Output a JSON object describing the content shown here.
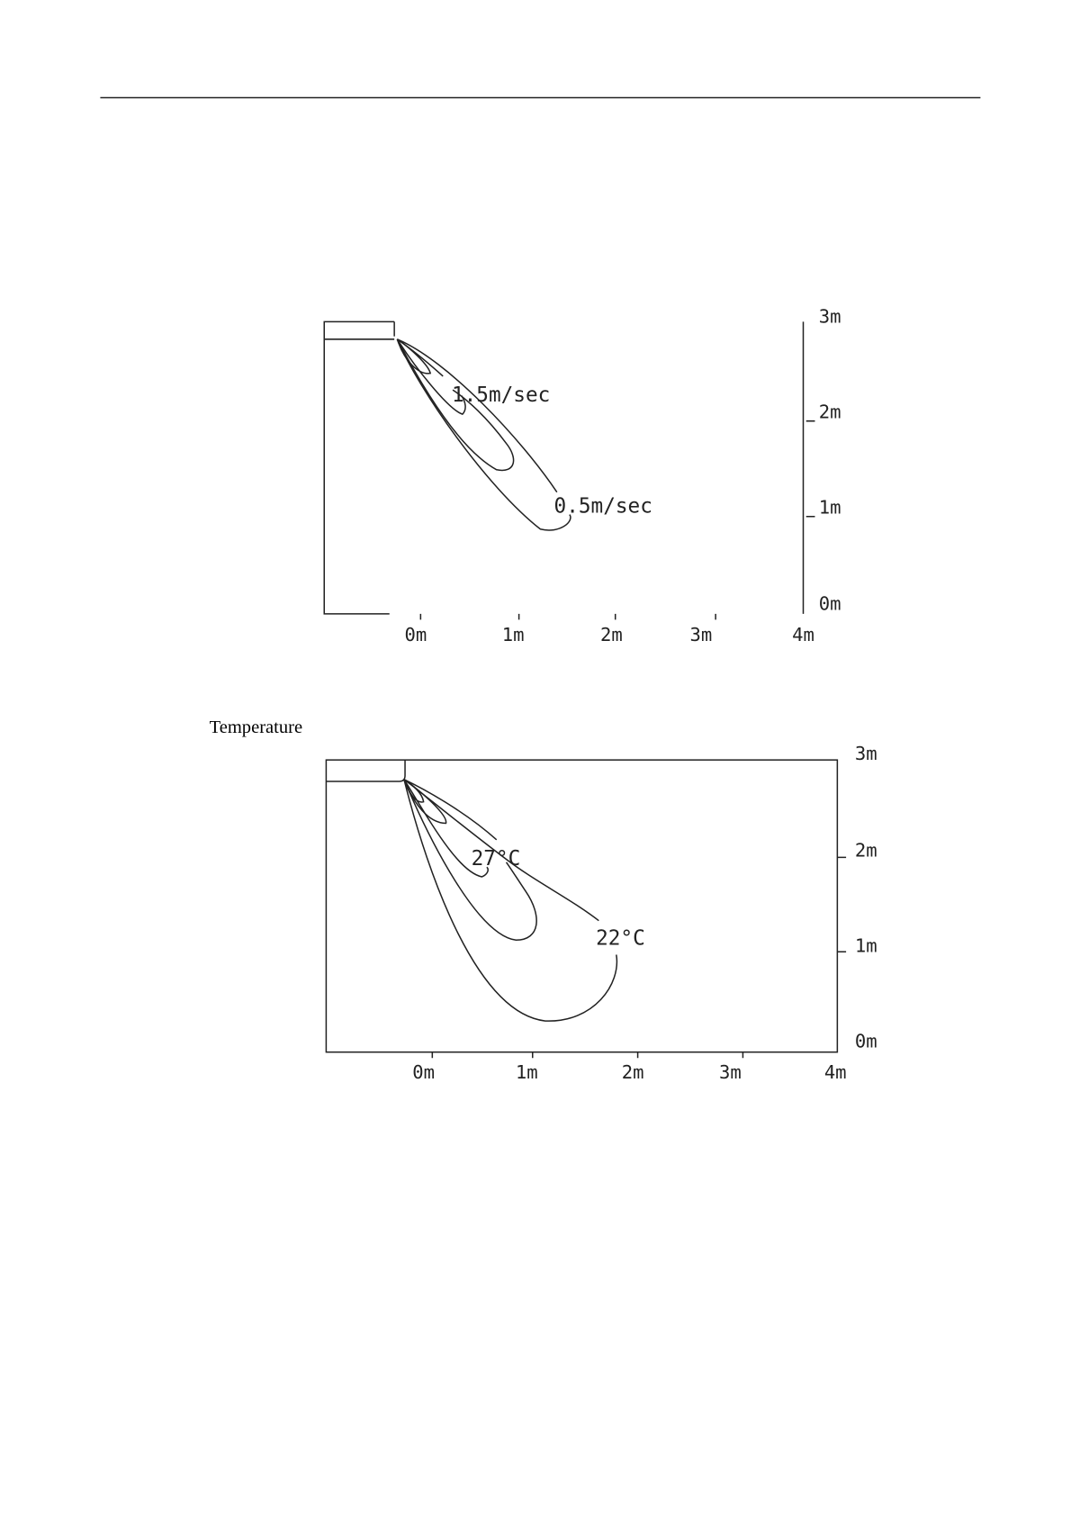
{
  "velocity_figure": {
    "x_tick_labels": [
      "0m",
      "1m",
      "2m",
      "3m",
      "4m"
    ],
    "y_tick_labels": [
      "3m",
      "2m",
      "1m",
      "0m"
    ],
    "contour_labels": [
      "1.5m/sec",
      "0.5m/sec"
    ]
  },
  "temperature_figure": {
    "title": "Temperature",
    "x_tick_labels": [
      "0m",
      "1m",
      "2m",
      "3m",
      "4m"
    ],
    "y_tick_labels": [
      "3m",
      "2m",
      "1m",
      "0m"
    ],
    "contour_labels": [
      "27°C",
      "22°C"
    ]
  }
}
